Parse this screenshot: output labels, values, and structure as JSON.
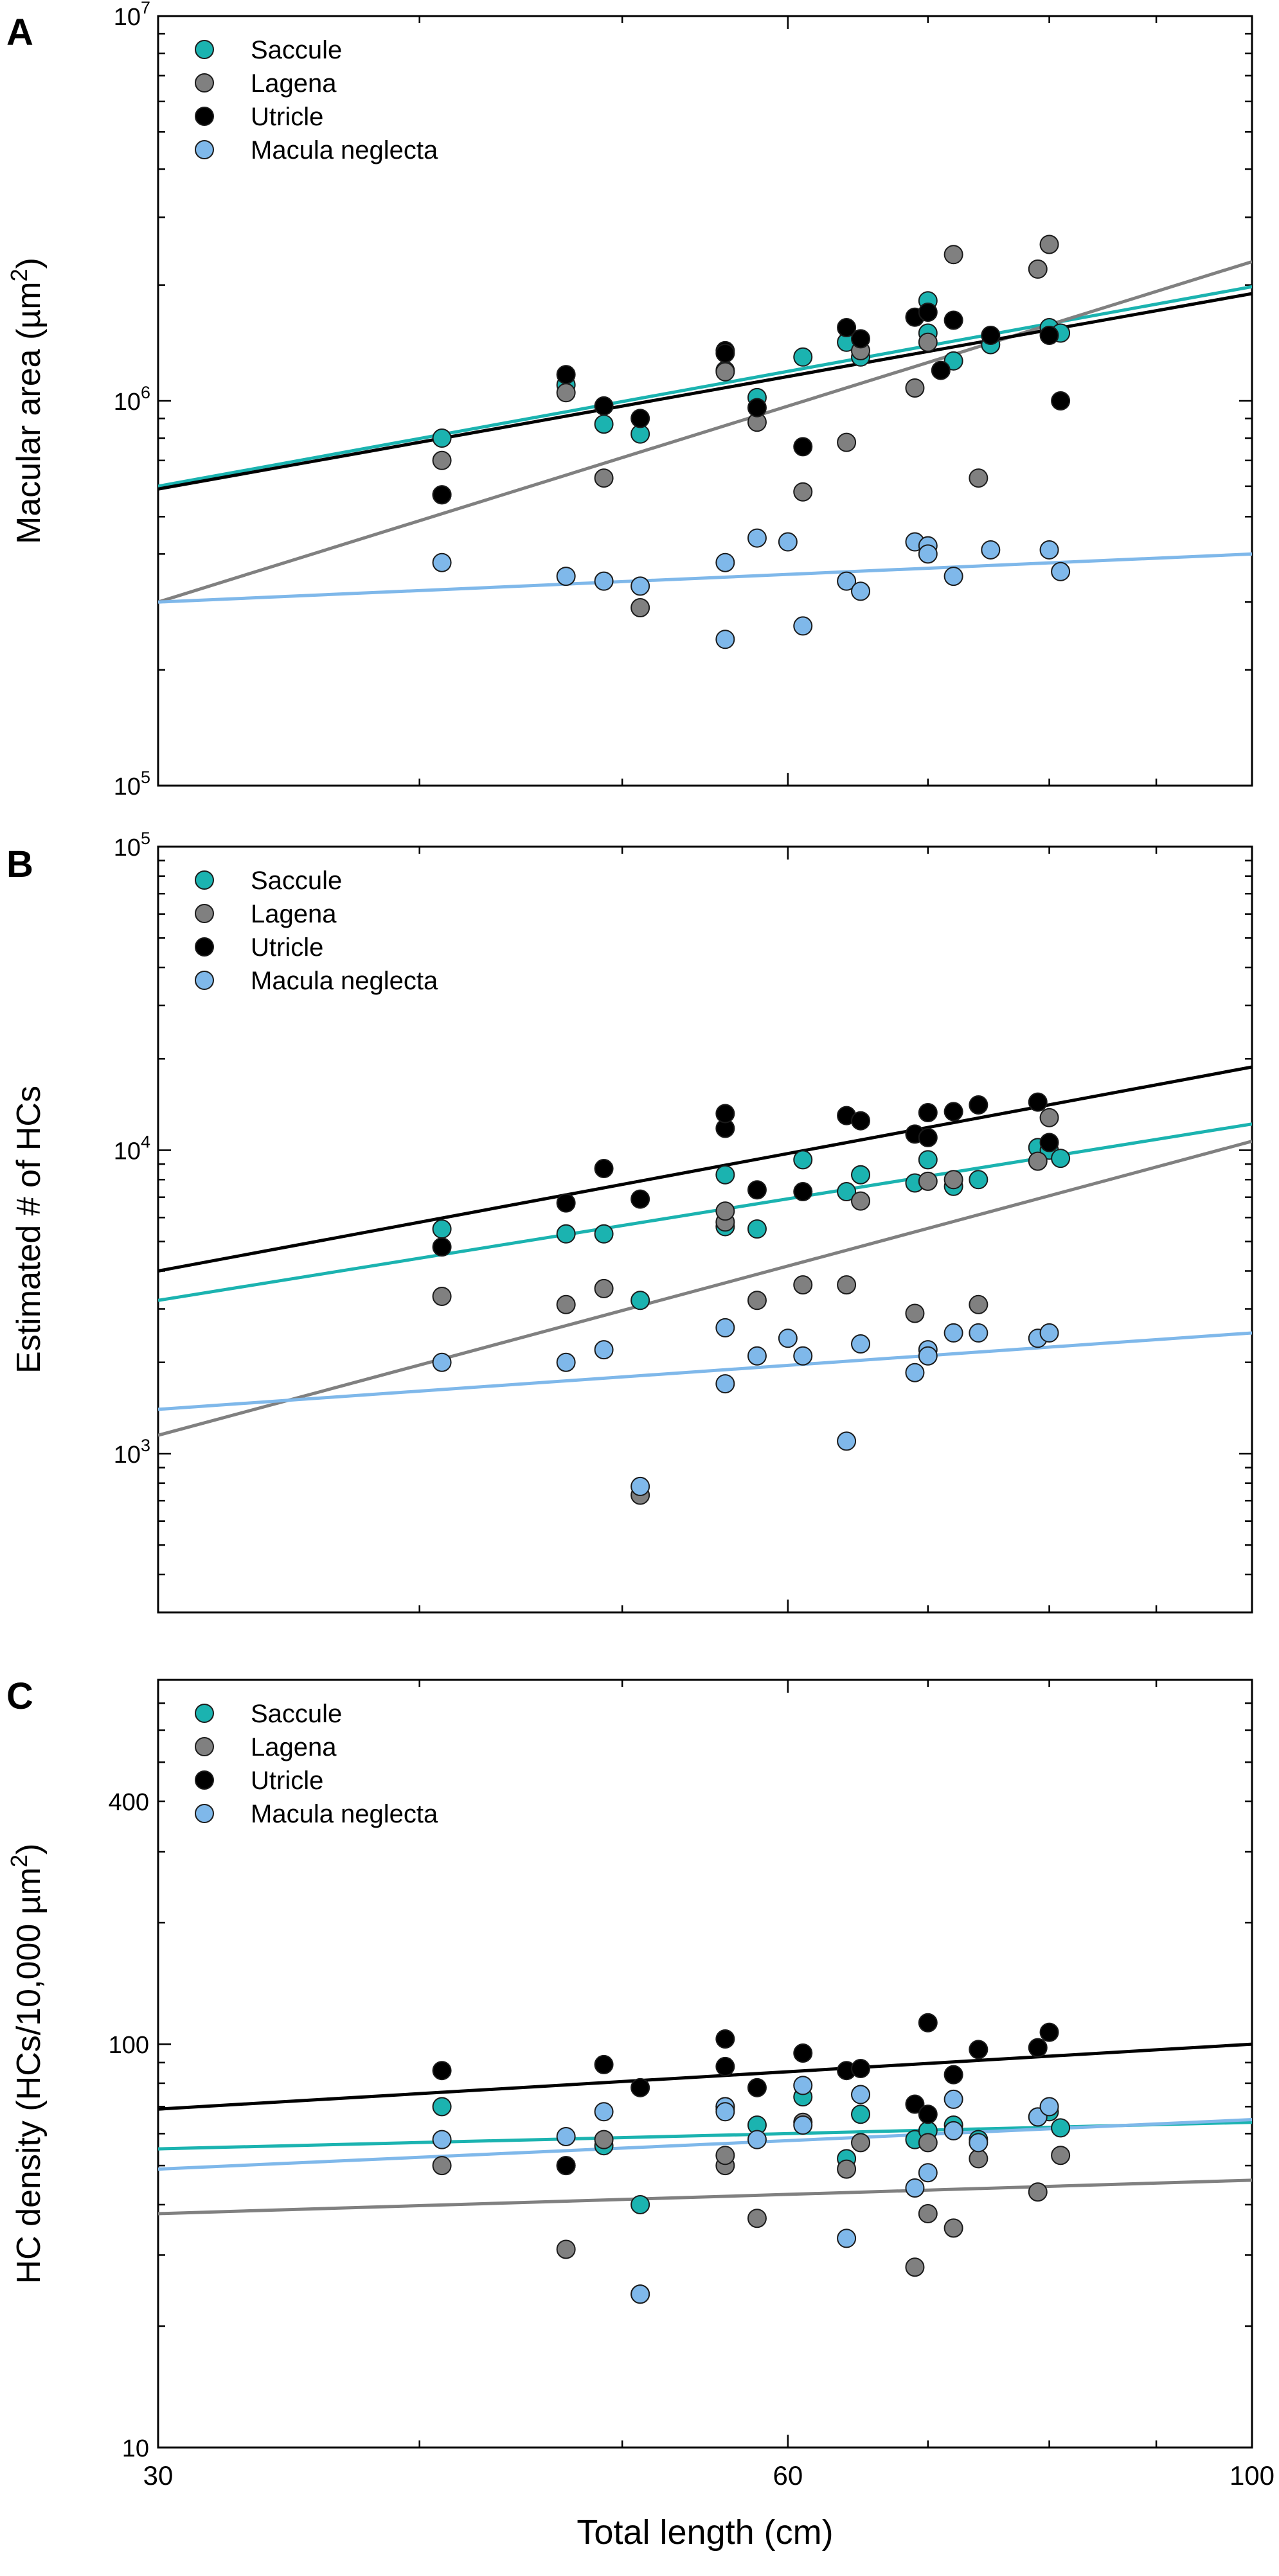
{
  "colors": {
    "saccule": "#1bb3b0",
    "lagena": "#808080",
    "utricle": "#000000",
    "macula_neglecta": "#7fb8ea"
  },
  "chart_data": [
    {
      "panel": "A",
      "type": "scatter",
      "ylabel": "Macular area (µm²)",
      "ylabel_main": "Macular area (",
      "ylabel_unit": "µm",
      "ylabel_sup": "2",
      "ylabel_end": ")",
      "xscale": "log",
      "yscale": "log",
      "xlim": [
        30,
        100
      ],
      "ylim": [
        100000,
        10000000
      ],
      "ytick_labels": [
        {
          "base": "10",
          "exp": "5",
          "value": 100000
        },
        {
          "base": "10",
          "exp": "6",
          "value": 1000000
        },
        {
          "base": "10",
          "exp": "7",
          "value": 10000000
        }
      ],
      "legend": {
        "position": "top-left",
        "entries": [
          "Saccule",
          "Lagena",
          "Utricle",
          "Macula neglecta"
        ]
      },
      "series": [
        {
          "name": "Saccule",
          "key": "saccule",
          "x": [
            41,
            47,
            49,
            51,
            56,
            58,
            61,
            64,
            65,
            70,
            70,
            72,
            75,
            80,
            81
          ],
          "y": [
            800000,
            1100000,
            870000,
            820000,
            1200000,
            1020000,
            1300000,
            1420000,
            1300000,
            1820000,
            1500000,
            1270000,
            1400000,
            1550000,
            1500000
          ],
          "fit": [
            [
              30,
              600000
            ],
            [
              100,
              1980000
            ]
          ]
        },
        {
          "name": "Lagena",
          "key": "lagena",
          "x": [
            41,
            41,
            47,
            49,
            51,
            56,
            58,
            61,
            64,
            65,
            69,
            70,
            72,
            74,
            79,
            80
          ],
          "y": [
            700000,
            570000,
            1050000,
            630000,
            290000,
            1190000,
            880000,
            580000,
            780000,
            1350000,
            1080000,
            1420000,
            2400000,
            630000,
            2200000,
            2550000
          ],
          "fit": [
            [
              30,
              300000
            ],
            [
              100,
              2300000
            ]
          ]
        },
        {
          "name": "Utricle",
          "key": "utricle",
          "x": [
            41,
            47,
            49,
            51,
            56,
            56,
            58,
            61,
            64,
            65,
            69,
            70,
            71,
            72,
            75,
            80,
            81
          ],
          "y": [
            570000,
            1170000,
            970000,
            900000,
            1350000,
            1330000,
            960000,
            760000,
            1550000,
            1450000,
            1650000,
            1700000,
            1200000,
            1620000,
            1480000,
            1480000,
            1000000
          ],
          "fit": [
            [
              30,
              590000
            ],
            [
              100,
              1900000
            ]
          ]
        },
        {
          "name": "Macula neglecta",
          "key": "macula_neglecta",
          "x": [
            41,
            47,
            49,
            51,
            56,
            56,
            58,
            60,
            61,
            64,
            65,
            69,
            70,
            70,
            72,
            75,
            80,
            81
          ],
          "y": [
            380000,
            350000,
            340000,
            330000,
            380000,
            240000,
            440000,
            430000,
            260000,
            340000,
            320000,
            430000,
            420000,
            400000,
            350000,
            410000,
            410000,
            360000
          ],
          "fit": [
            [
              30,
              300000
            ],
            [
              100,
              400000
            ]
          ]
        }
      ]
    },
    {
      "panel": "B",
      "type": "scatter",
      "ylabel": "Estimated # of HCs",
      "xscale": "log",
      "yscale": "log",
      "xlim": [
        30,
        100
      ],
      "ylim": [
        300,
        100000
      ],
      "ytick_labels": [
        {
          "base": "10",
          "exp": "3",
          "value": 1000
        },
        {
          "base": "10",
          "exp": "4",
          "value": 10000
        },
        {
          "base": "10",
          "exp": "5",
          "value": 100000
        }
      ],
      "legend": {
        "position": "top-left",
        "entries": [
          "Saccule",
          "Lagena",
          "Utricle",
          "Macula neglecta"
        ]
      },
      "series": [
        {
          "name": "Saccule",
          "key": "saccule",
          "x": [
            41,
            47,
            49,
            51,
            56,
            56,
            58,
            61,
            64,
            65,
            69,
            70,
            72,
            74,
            79,
            80,
            81
          ],
          "y": [
            5500,
            5300,
            5300,
            3200,
            8300,
            5600,
            5500,
            9300,
            7300,
            8300,
            7800,
            9300,
            7600,
            8000,
            10200,
            10000,
            9400
          ],
          "fit": [
            [
              30,
              3200
            ],
            [
              100,
              12200
            ]
          ]
        },
        {
          "name": "Lagena",
          "key": "lagena",
          "x": [
            41,
            47,
            49,
            51,
            56,
            56,
            58,
            61,
            64,
            65,
            69,
            70,
            72,
            74,
            79,
            80
          ],
          "y": [
            3300,
            3100,
            3500,
            730,
            5800,
            6300,
            3200,
            3600,
            3600,
            6800,
            2900,
            7900,
            8000,
            3100,
            9200,
            12800
          ],
          "fit": [
            [
              30,
              1150
            ],
            [
              100,
              10700
            ]
          ]
        },
        {
          "name": "Utricle",
          "key": "utricle",
          "x": [
            41,
            47,
            49,
            51,
            56,
            56,
            58,
            61,
            64,
            65,
            69,
            70,
            70,
            72,
            74,
            79,
            80
          ],
          "y": [
            4800,
            6700,
            8700,
            6900,
            11800,
            13200,
            7400,
            7300,
            13000,
            12500,
            11300,
            13300,
            11000,
            13400,
            14100,
            14400,
            10600
          ],
          "fit": [
            [
              30,
              4000
            ],
            [
              100,
              18800
            ]
          ]
        },
        {
          "name": "Macula neglecta",
          "key": "macula_neglecta",
          "x": [
            41,
            47,
            49,
            51,
            56,
            56,
            58,
            60,
            61,
            64,
            65,
            69,
            70,
            70,
            72,
            74,
            79,
            80
          ],
          "y": [
            2000,
            2000,
            2200,
            780,
            2600,
            1700,
            2100,
            2400,
            2100,
            1100,
            2300,
            1850,
            2200,
            2100,
            2500,
            2500,
            2400,
            2500
          ],
          "fit": [
            [
              30,
              1400
            ],
            [
              100,
              2500
            ]
          ]
        }
      ]
    },
    {
      "panel": "C",
      "type": "scatter",
      "ylabel": "HC density (HCs/10,000 µm²)",
      "ylabel_main": "HC density (HCs/10,000 ",
      "ylabel_unit": "µm",
      "ylabel_sup": "2",
      "ylabel_end": ")",
      "xlabel": "Total length (cm)",
      "xscale": "log",
      "yscale": "log",
      "xlim": [
        30,
        100
      ],
      "ylim": [
        10,
        800
      ],
      "xtick_labels": [
        {
          "label": "30",
          "value": 30
        },
        {
          "label": "60",
          "value": 60
        },
        {
          "label": "100",
          "value": 100
        }
      ],
      "ytick_labels": [
        {
          "label": "10",
          "value": 10
        },
        {
          "label": "100",
          "value": 100
        },
        {
          "label": "400",
          "value": 400
        }
      ],
      "legend": {
        "position": "top-left",
        "entries": [
          "Saccule",
          "Lagena",
          "Utricle",
          "Macula neglecta"
        ]
      },
      "series": [
        {
          "name": "Saccule",
          "key": "saccule",
          "x": [
            41,
            47,
            49,
            51,
            56,
            56,
            58,
            61,
            64,
            65,
            69,
            70,
            72,
            74,
            79,
            80,
            81
          ],
          "y": [
            70,
            50,
            56,
            40,
            70,
            69,
            63,
            74,
            52,
            67,
            58,
            61,
            63,
            58,
            66,
            68,
            62
          ],
          "fit": [
            [
              30,
              55
            ],
            [
              100,
              64
            ]
          ]
        },
        {
          "name": "Lagena",
          "key": "lagena",
          "x": [
            41,
            47,
            49,
            51,
            56,
            56,
            58,
            61,
            64,
            65,
            69,
            70,
            70,
            72,
            74,
            79,
            81
          ],
          "y": [
            50,
            31,
            58,
            24,
            50,
            53,
            37,
            64,
            49,
            57,
            28,
            57,
            38,
            35,
            52,
            43,
            53
          ],
          "fit": [
            [
              30,
              38
            ],
            [
              100,
              46
            ]
          ]
        },
        {
          "name": "Utricle",
          "key": "utricle",
          "x": [
            41,
            47,
            49,
            51,
            56,
            56,
            58,
            61,
            64,
            65,
            69,
            70,
            70,
            72,
            74,
            79,
            80
          ],
          "y": [
            86,
            50,
            89,
            78,
            88,
            103,
            78,
            95,
            86,
            87,
            71,
            113,
            67,
            84,
            97,
            98,
            107
          ],
          "fit": [
            [
              30,
              69
            ],
            [
              100,
              100
            ]
          ]
        },
        {
          "name": "Macula neglecta",
          "key": "macula_neglecta",
          "x": [
            41,
            47,
            49,
            51,
            56,
            56,
            58,
            61,
            61,
            64,
            65,
            69,
            70,
            72,
            72,
            74,
            79,
            80
          ],
          "y": [
            58,
            59,
            68,
            24,
            70,
            68,
            58,
            79,
            63,
            33,
            75,
            44,
            48,
            61,
            73,
            57,
            66,
            70
          ],
          "fit": [
            [
              30,
              49
            ],
            [
              100,
              65
            ]
          ]
        }
      ]
    }
  ]
}
